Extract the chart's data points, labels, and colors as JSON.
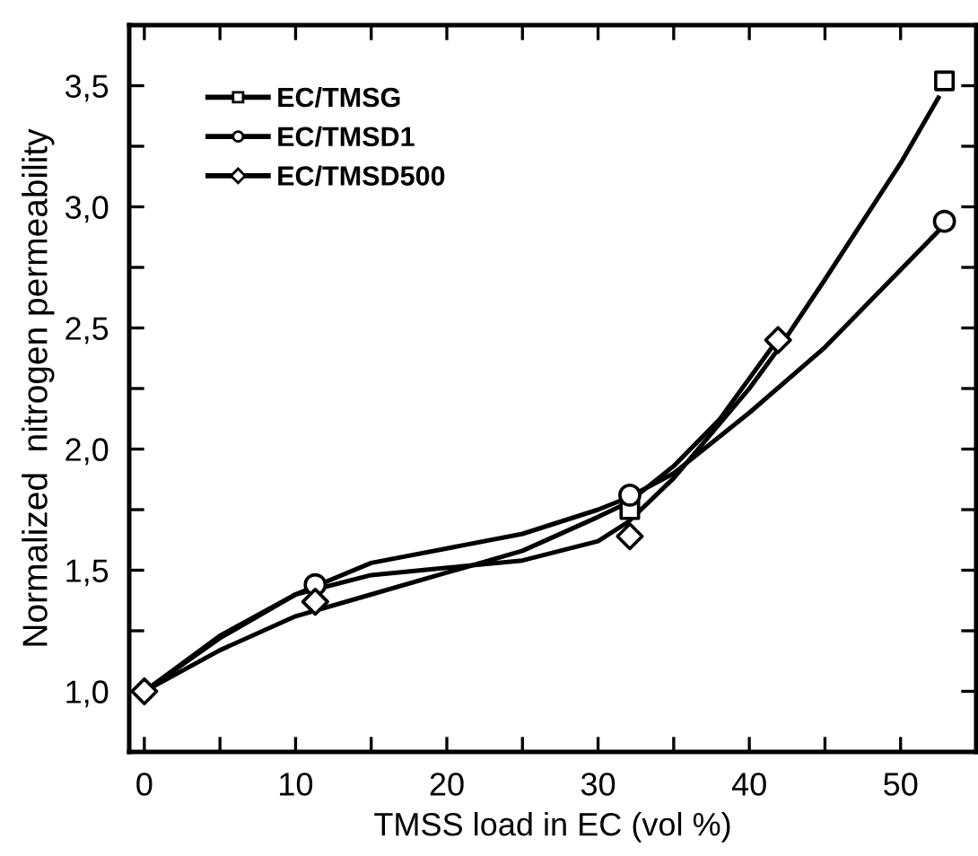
{
  "chart_data": {
    "type": "scatter",
    "xlabel": "TMSS load in EC (vol %)",
    "ylabel": "Normalized  nitrogen permeability",
    "xlim": [
      -1,
      55
    ],
    "ylim": [
      0.75,
      3.75
    ],
    "xticks": [
      0,
      {
        "value": 5,
        "label": null
      },
      10,
      {
        "value": 15,
        "label": null
      },
      20,
      {
        "value": 25,
        "label": null
      },
      30,
      {
        "value": 35,
        "label": null
      },
      40,
      {
        "value": 45,
        "label": null
      },
      50
    ],
    "yticks": [
      {
        "value": 1.0,
        "label": "1,0"
      },
      {
        "value": 1.25,
        "label": null
      },
      {
        "value": 1.5,
        "label": "1,5"
      },
      {
        "value": 1.75,
        "label": null
      },
      {
        "value": 2.0,
        "label": "2,0"
      },
      {
        "value": 2.25,
        "label": null
      },
      {
        "value": 2.5,
        "label": "2,5"
      },
      {
        "value": 2.75,
        "label": null
      },
      {
        "value": 3.0,
        "label": "3,0"
      },
      {
        "value": 3.25,
        "label": null
      },
      {
        "value": 3.5,
        "label": "3,5"
      }
    ],
    "legend": "top left",
    "grid": false,
    "series": [
      {
        "name": "EC/TMSG",
        "marker": "square",
        "color": "#000000",
        "x": [
          32.1,
          52.9
        ],
        "values": [
          1.75,
          3.52
        ]
      },
      {
        "name": "EC/TMSD1",
        "marker": "circle",
        "color": "#000000",
        "x": [
          11.3,
          32.1,
          52.9
        ],
        "values": [
          1.44,
          1.81,
          2.94
        ]
      },
      {
        "name": "EC/TMSD500",
        "marker": "diamond",
        "color": "#000000",
        "x": [
          0,
          11.3,
          32.1,
          41.9
        ],
        "values": [
          1.0,
          1.37,
          1.64,
          2.45
        ]
      },
      {
        "type": "line",
        "line_style": "solid",
        "color": "#000000",
        "x": [
          0,
          5,
          10,
          15,
          20,
          25,
          30,
          32,
          35,
          40,
          42,
          45,
          50,
          52.5
        ],
        "values": [
          1.0,
          1.23,
          1.4,
          1.48,
          1.51,
          1.54,
          1.62,
          1.7,
          1.88,
          2.25,
          2.42,
          2.7,
          3.18,
          3.45
        ]
      },
      {
        "type": "line",
        "line_style": "solid",
        "color": "#000000",
        "x": [
          0,
          5,
          10,
          15,
          20,
          25,
          30,
          32,
          35,
          40,
          45,
          50,
          52.5
        ],
        "values": [
          1.0,
          1.22,
          1.4,
          1.53,
          1.59,
          1.65,
          1.75,
          1.8,
          1.9,
          2.15,
          2.42,
          2.74,
          2.9
        ]
      },
      {
        "type": "line",
        "line_style": "solid",
        "color": "#000000",
        "x": [
          0,
          5,
          10,
          15,
          20,
          25,
          30,
          32,
          35,
          38,
          41.5
        ],
        "values": [
          1.0,
          1.17,
          1.31,
          1.4,
          1.49,
          1.58,
          1.72,
          1.78,
          1.93,
          2.12,
          2.42
        ]
      }
    ]
  }
}
